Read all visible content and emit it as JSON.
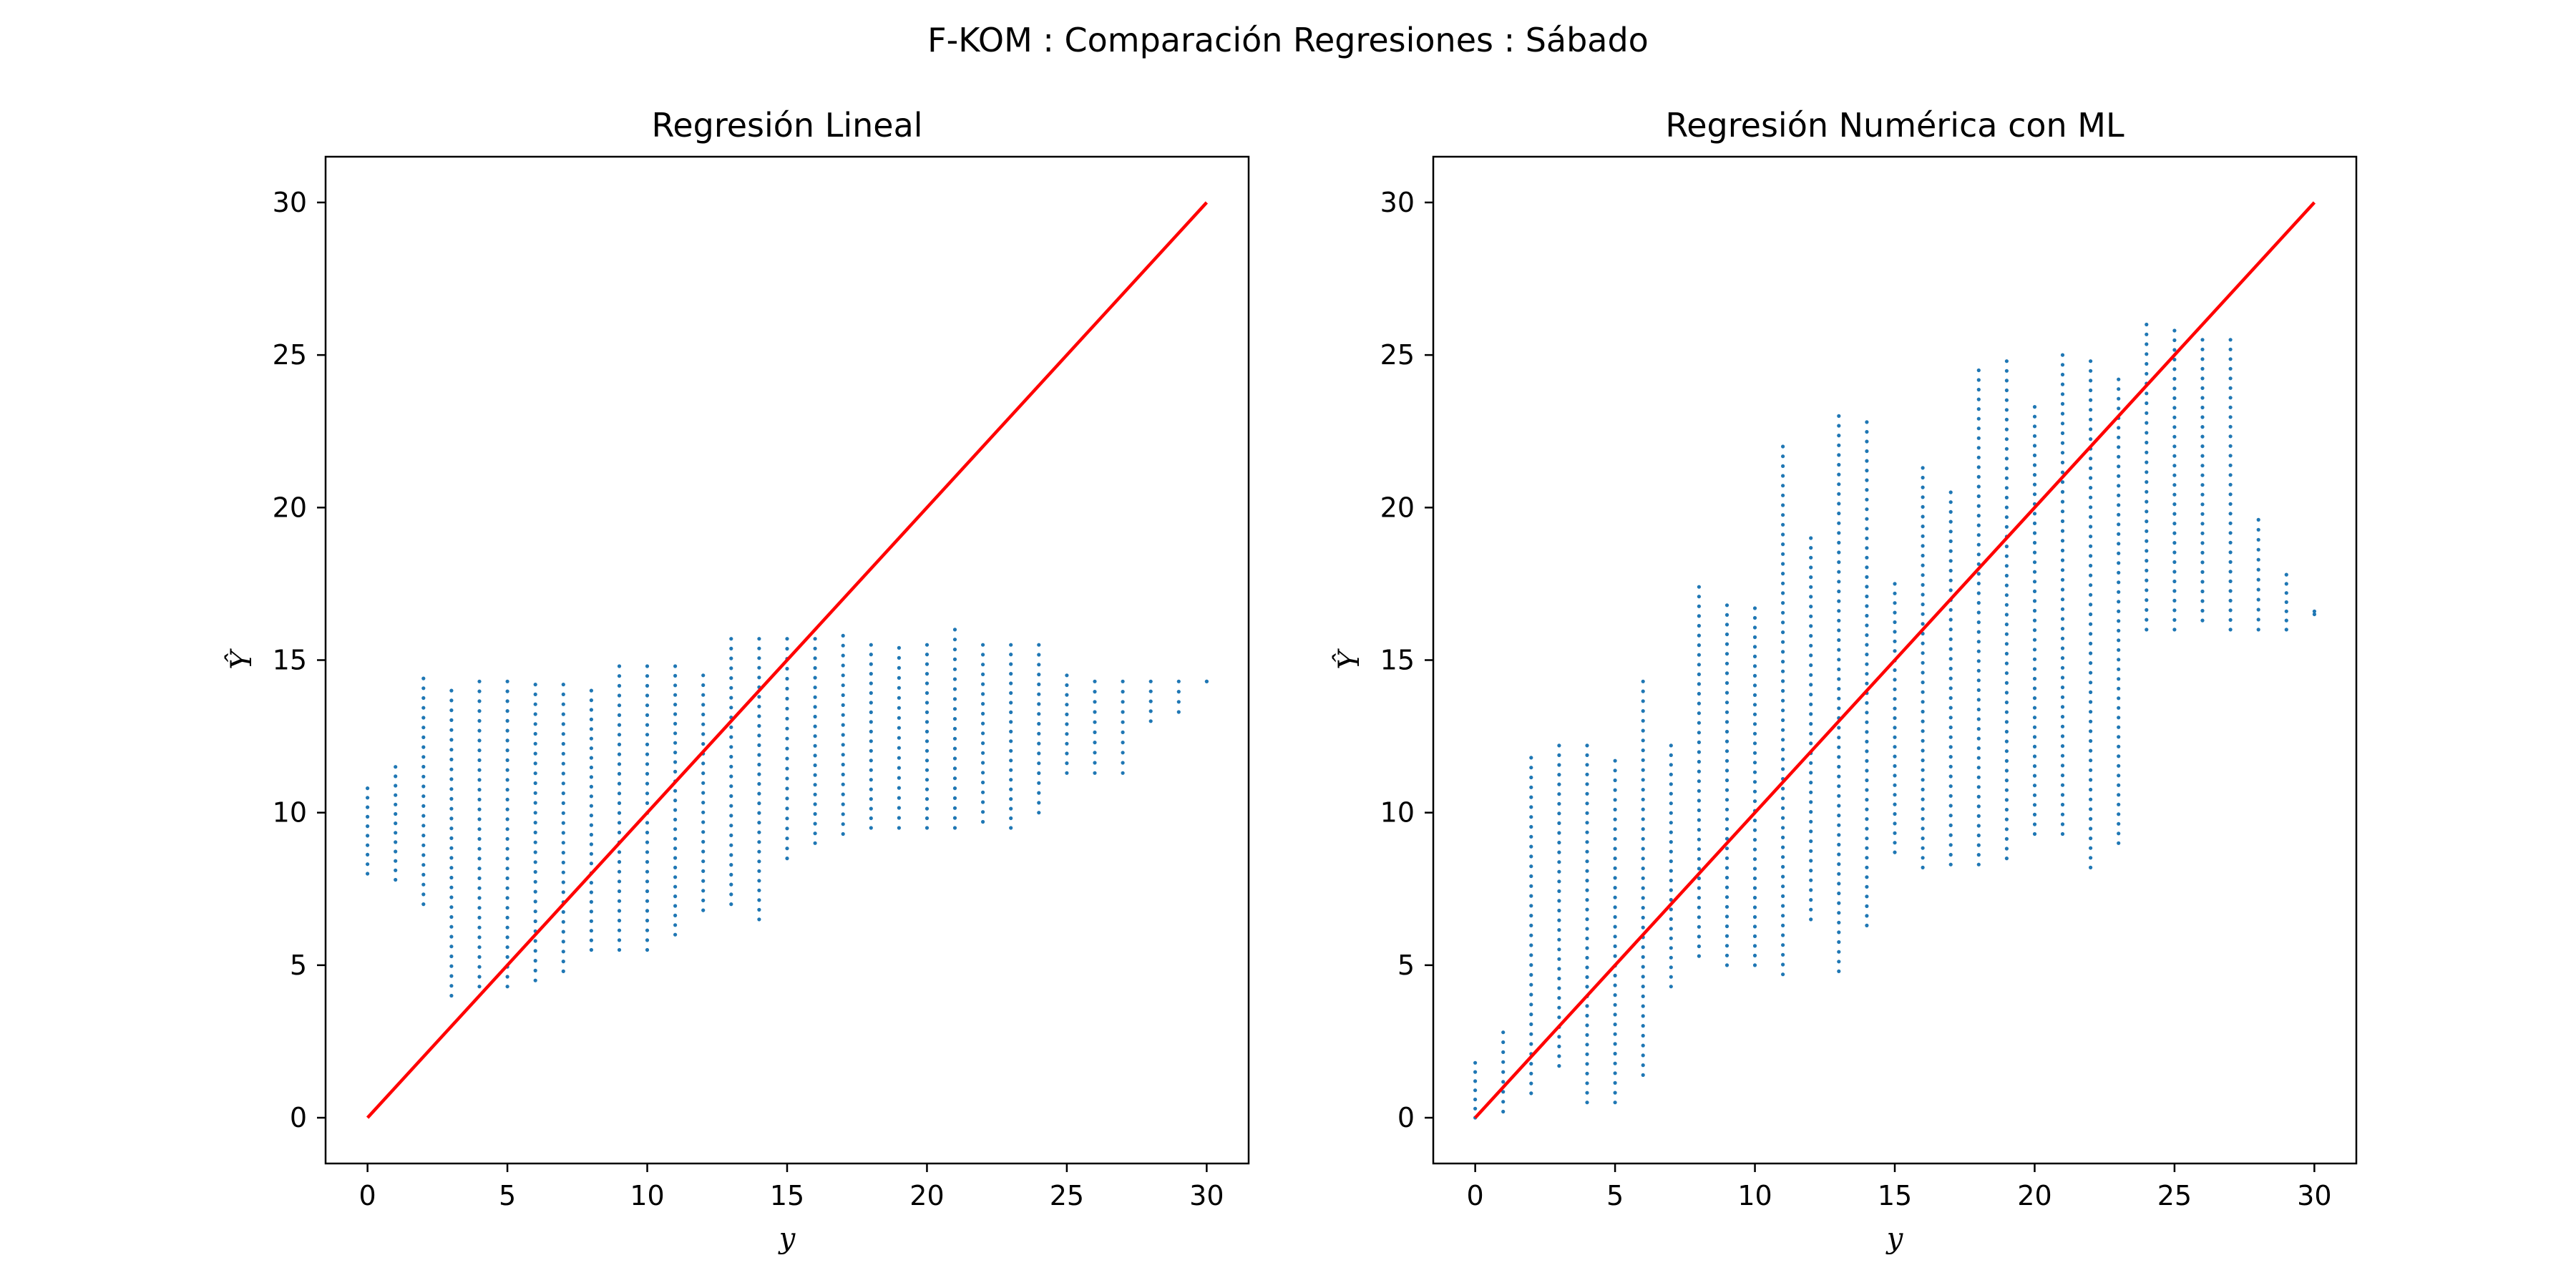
{
  "figure": {
    "suptitle": "F-KOM : Comparación Regresiones : Sábado"
  },
  "colors": {
    "points": "#1f77b4",
    "reference_line": "#ff0000",
    "axes": "#000000"
  },
  "chart_data": [
    {
      "type": "scatter",
      "title": "Regresión Lineal",
      "xlabel": "y",
      "ylabel": "Ŷ",
      "xlim": [
        -1.5,
        31.5
      ],
      "ylim": [
        -1.5,
        31.5
      ],
      "xticks": [
        0,
        5,
        10,
        15,
        20,
        25,
        30
      ],
      "yticks": [
        0,
        5,
        10,
        15,
        20,
        25,
        30
      ],
      "grid": false,
      "reference_line": {
        "x": [
          0,
          30
        ],
        "y": [
          0,
          30
        ],
        "color": "#ff0000"
      },
      "columns": [
        {
          "x": 0,
          "ymin": 8.0,
          "ymax": 10.8
        },
        {
          "x": 1,
          "ymin": 7.8,
          "ymax": 11.5
        },
        {
          "x": 2,
          "ymin": 7.0,
          "ymax": 14.4
        },
        {
          "x": 3,
          "ymin": 4.0,
          "ymax": 14.0
        },
        {
          "x": 4,
          "ymin": 4.3,
          "ymax": 14.3
        },
        {
          "x": 5,
          "ymin": 4.3,
          "ymax": 14.3
        },
        {
          "x": 6,
          "ymin": 4.5,
          "ymax": 14.2
        },
        {
          "x": 7,
          "ymin": 4.8,
          "ymax": 14.2
        },
        {
          "x": 8,
          "ymin": 5.5,
          "ymax": 14.0
        },
        {
          "x": 9,
          "ymin": 5.5,
          "ymax": 14.8
        },
        {
          "x": 10,
          "ymin": 5.5,
          "ymax": 14.8
        },
        {
          "x": 11,
          "ymin": 6.0,
          "ymax": 14.8
        },
        {
          "x": 12,
          "ymin": 6.8,
          "ymax": 14.5
        },
        {
          "x": 13,
          "ymin": 7.0,
          "ymax": 15.7
        },
        {
          "x": 14,
          "ymin": 6.5,
          "ymax": 15.7
        },
        {
          "x": 15,
          "ymin": 8.5,
          "ymax": 15.7
        },
        {
          "x": 16,
          "ymin": 9.0,
          "ymax": 15.7
        },
        {
          "x": 17,
          "ymin": 9.3,
          "ymax": 15.8
        },
        {
          "x": 18,
          "ymin": 9.5,
          "ymax": 15.5
        },
        {
          "x": 19,
          "ymin": 9.5,
          "ymax": 15.4
        },
        {
          "x": 20,
          "ymin": 9.5,
          "ymax": 15.5
        },
        {
          "x": 21,
          "ymin": 9.5,
          "ymax": 16.0
        },
        {
          "x": 22,
          "ymin": 9.7,
          "ymax": 15.5
        },
        {
          "x": 23,
          "ymin": 9.5,
          "ymax": 15.5
        },
        {
          "x": 24,
          "ymin": 10.0,
          "ymax": 15.5
        },
        {
          "x": 25,
          "ymin": 11.3,
          "ymax": 14.5
        },
        {
          "x": 26,
          "ymin": 11.3,
          "ymax": 14.3
        },
        {
          "x": 27,
          "ymin": 11.3,
          "ymax": 14.3
        },
        {
          "x": 28,
          "ymin": 13.0,
          "ymax": 14.3
        },
        {
          "x": 29,
          "ymin": 13.3,
          "ymax": 14.3
        },
        {
          "x": 30,
          "ymin": 14.3,
          "ymax": 14.3
        }
      ]
    },
    {
      "type": "scatter",
      "title": "Regresión Numérica con ML",
      "xlabel": "y",
      "ylabel": "Ŷ",
      "xlim": [
        -1.5,
        31.5
      ],
      "ylim": [
        -1.5,
        31.5
      ],
      "xticks": [
        0,
        5,
        10,
        15,
        20,
        25,
        30
      ],
      "yticks": [
        0,
        5,
        10,
        15,
        20,
        25,
        30
      ],
      "grid": false,
      "reference_line": {
        "x": [
          0,
          30
        ],
        "y": [
          0,
          30
        ],
        "color": "#ff0000"
      },
      "columns": [
        {
          "x": 0,
          "ymin": 0.0,
          "ymax": 1.8
        },
        {
          "x": 1,
          "ymin": 0.2,
          "ymax": 2.8
        },
        {
          "x": 2,
          "ymin": 0.8,
          "ymax": 11.8
        },
        {
          "x": 3,
          "ymin": 1.7,
          "ymax": 12.2
        },
        {
          "x": 4,
          "ymin": 0.5,
          "ymax": 12.2
        },
        {
          "x": 5,
          "ymin": 0.5,
          "ymax": 11.7
        },
        {
          "x": 6,
          "ymin": 1.4,
          "ymax": 14.3
        },
        {
          "x": 7,
          "ymin": 4.3,
          "ymax": 12.2
        },
        {
          "x": 8,
          "ymin": 5.3,
          "ymax": 17.4
        },
        {
          "x": 9,
          "ymin": 5.0,
          "ymax": 16.8
        },
        {
          "x": 10,
          "ymin": 5.0,
          "ymax": 16.7
        },
        {
          "x": 11,
          "ymin": 4.7,
          "ymax": 22.0
        },
        {
          "x": 12,
          "ymin": 6.5,
          "ymax": 19.0
        },
        {
          "x": 13,
          "ymin": 4.8,
          "ymax": 23.0
        },
        {
          "x": 14,
          "ymin": 6.3,
          "ymax": 22.8
        },
        {
          "x": 15,
          "ymin": 8.7,
          "ymax": 17.5
        },
        {
          "x": 16,
          "ymin": 8.2,
          "ymax": 21.3
        },
        {
          "x": 17,
          "ymin": 8.3,
          "ymax": 20.5
        },
        {
          "x": 18,
          "ymin": 8.3,
          "ymax": 24.5
        },
        {
          "x": 19,
          "ymin": 8.5,
          "ymax": 24.8
        },
        {
          "x": 20,
          "ymin": 9.3,
          "ymax": 23.3
        },
        {
          "x": 21,
          "ymin": 9.3,
          "ymax": 25.0
        },
        {
          "x": 22,
          "ymin": 8.2,
          "ymax": 24.8
        },
        {
          "x": 23,
          "ymin": 9.0,
          "ymax": 24.2
        },
        {
          "x": 24,
          "ymin": 16.0,
          "ymax": 26.0
        },
        {
          "x": 25,
          "ymin": 16.0,
          "ymax": 25.8
        },
        {
          "x": 26,
          "ymin": 16.3,
          "ymax": 25.5
        },
        {
          "x": 27,
          "ymin": 16.0,
          "ymax": 25.5
        },
        {
          "x": 28,
          "ymin": 16.0,
          "ymax": 19.6
        },
        {
          "x": 29,
          "ymin": 16.0,
          "ymax": 17.8
        },
        {
          "x": 30,
          "ymin": 16.5,
          "ymax": 16.6
        }
      ]
    }
  ]
}
